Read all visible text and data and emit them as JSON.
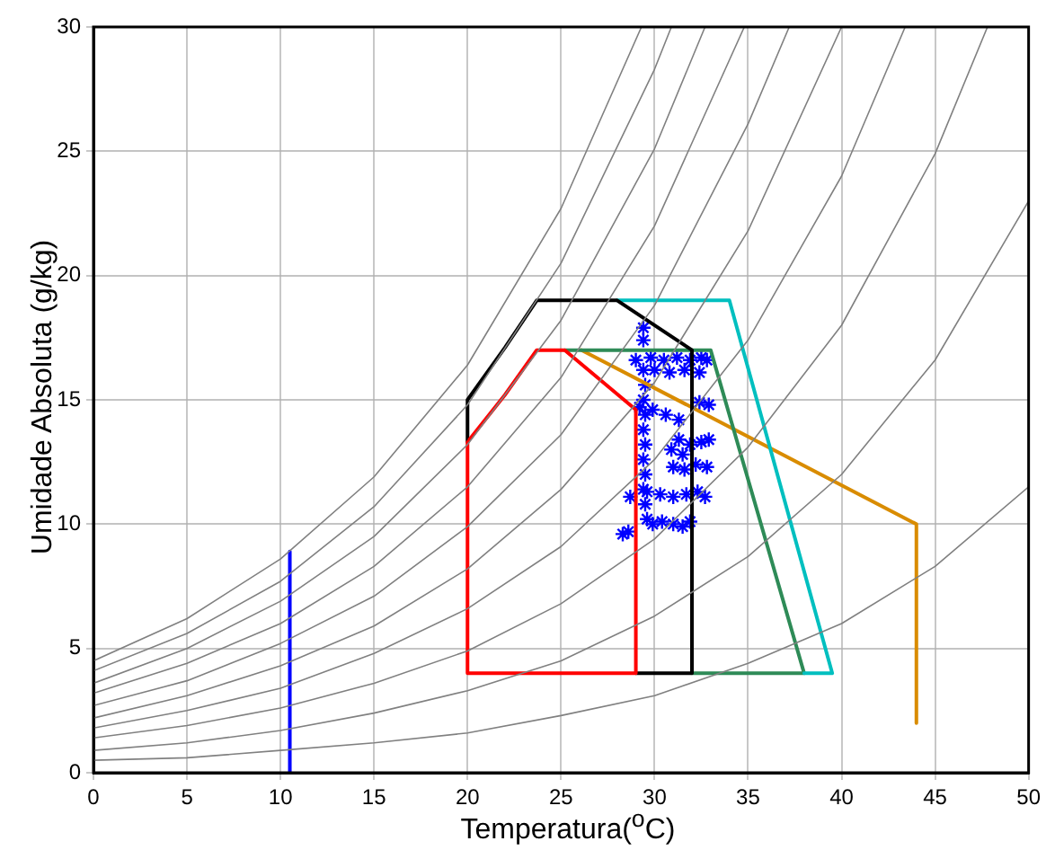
{
  "chart_data": {
    "type": "line",
    "xlabel": "Temperatura($^{o}$C)",
    "ylabel": "Umidade Absoluta (g/kg)",
    "xlim": [
      0,
      50
    ],
    "ylim": [
      0,
      30
    ],
    "xticks": [
      0,
      5,
      10,
      15,
      20,
      25,
      30,
      35,
      40,
      45,
      50
    ],
    "yticks": [
      0,
      5,
      10,
      15,
      20,
      25,
      30
    ],
    "grid": true,
    "legend": false,
    "line_style": "solid",
    "series": [
      {
        "type": "line",
        "color": "#808080",
        "x": [
          0,
          5,
          10,
          15,
          20,
          25,
          29.3
        ],
        "values": [
          4.5,
          6.2,
          8.6,
          11.9,
          16.4,
          22.7,
          30
        ]
      },
      {
        "type": "line",
        "color": "#808080",
        "x": [
          0,
          5,
          10,
          15,
          20,
          25,
          30,
          30.9
        ],
        "values": [
          4.1,
          5.6,
          7.7,
          10.7,
          14.8,
          20.5,
          28.3,
          30
        ]
      },
      {
        "type": "line",
        "color": "#808080",
        "x": [
          0,
          5,
          10,
          15,
          20,
          25,
          30,
          32.7
        ],
        "values": [
          3.6,
          5.0,
          6.9,
          9.5,
          13.2,
          18.2,
          25.1,
          30
        ]
      },
      {
        "type": "line",
        "color": "#808080",
        "x": [
          0,
          5,
          10,
          15,
          20,
          25,
          30,
          34.8
        ],
        "values": [
          3.2,
          4.4,
          6.0,
          8.3,
          11.5,
          15.9,
          22.0,
          30
        ]
      },
      {
        "type": "line",
        "color": "#808080",
        "x": [
          0,
          5,
          10,
          15,
          20,
          25,
          30,
          35,
          37.2
        ],
        "values": [
          2.7,
          3.7,
          5.2,
          7.1,
          9.9,
          13.6,
          18.8,
          26.1,
          30
        ]
      },
      {
        "type": "line",
        "color": "#808080",
        "x": [
          0,
          5,
          10,
          15,
          20,
          25,
          30,
          35,
          40
        ],
        "values": [
          2.2,
          3.1,
          4.3,
          5.9,
          8.2,
          11.4,
          15.7,
          21.8,
          30
        ]
      },
      {
        "type": "line",
        "color": "#808080",
        "x": [
          0,
          5,
          10,
          15,
          20,
          25,
          30,
          35,
          40,
          43.4
        ],
        "values": [
          1.8,
          2.5,
          3.4,
          4.8,
          6.6,
          9.1,
          12.6,
          17.4,
          24.0,
          30
        ]
      },
      {
        "type": "line",
        "color": "#808080",
        "x": [
          0,
          5,
          10,
          15,
          20,
          25,
          30,
          35,
          40,
          45,
          47.8
        ],
        "values": [
          1.4,
          1.9,
          2.6,
          3.6,
          4.9,
          6.8,
          9.4,
          13.1,
          18.0,
          24.9,
          30
        ]
      },
      {
        "type": "line",
        "color": "#808080",
        "x": [
          0,
          5,
          10,
          15,
          20,
          25,
          30,
          35,
          40,
          45,
          50
        ],
        "values": [
          0.9,
          1.2,
          1.7,
          2.4,
          3.3,
          4.5,
          6.3,
          8.7,
          12.0,
          16.6,
          23.0
        ]
      },
      {
        "type": "line",
        "color": "#808080",
        "x": [
          0,
          5,
          10,
          15,
          20,
          25,
          30,
          35,
          40,
          45,
          50
        ],
        "values": [
          0.5,
          0.6,
          0.9,
          1.2,
          1.6,
          2.3,
          3.1,
          4.4,
          6.0,
          8.3,
          11.5
        ]
      },
      {
        "type": "line",
        "color": "#0000ff",
        "x": [
          10.5,
          10.5
        ],
        "values": [
          0,
          8.9
        ]
      },
      {
        "type": "line",
        "color": "#ff0000",
        "x": [
          20,
          20,
          29,
          29,
          25.2,
          23.7,
          22,
          20.1
        ],
        "values": [
          13.3,
          4,
          4,
          14.6,
          17,
          17,
          15.2,
          13.4
        ]
      },
      {
        "type": "line",
        "color": "#000000",
        "x": [
          29,
          32,
          32,
          28,
          23.7,
          22,
          20,
          20
        ],
        "values": [
          4,
          4,
          17,
          19,
          19,
          17.1,
          15,
          13.3
        ]
      },
      {
        "type": "line",
        "color": "#00bfbf",
        "x": [
          28,
          34,
          39.5,
          38
        ],
        "values": [
          19,
          19,
          4,
          4
        ]
      },
      {
        "type": "line",
        "color": "#2e8b57",
        "x": [
          25.2,
          33,
          38,
          32
        ],
        "values": [
          17,
          17,
          4,
          4
        ]
      },
      {
        "type": "line",
        "color": "#d98c00",
        "x": [
          26.1,
          44,
          44
        ],
        "values": [
          17,
          10,
          2
        ]
      },
      {
        "type": "scatter",
        "color": "#0000ff",
        "marker": "cross",
        "x": [
          29.4,
          29.4,
          29.4,
          29.5,
          29.4,
          29.5,
          29.4,
          29.5,
          29.4,
          29.5,
          29.4,
          29.5,
          29.6,
          29.0,
          29.8,
          30.5,
          31.2,
          31.9,
          32.5,
          32.8,
          30.0,
          30.8,
          31.6,
          32.4,
          29.2,
          29.9,
          30.6,
          31.3,
          32.4,
          32.9,
          31.3,
          31.9,
          32.5,
          32.9,
          31.0,
          31.6,
          32.2,
          32.8,
          28.7,
          29.6,
          30.3,
          31.0,
          31.7,
          32.3,
          32.7,
          28.3,
          28.6,
          29.9,
          30.4,
          31.0,
          31.5,
          31.9,
          30.9,
          31.5
        ],
        "values": [
          17.9,
          17.4,
          16.2,
          15.6,
          15.0,
          14.4,
          13.8,
          13.2,
          12.6,
          12.0,
          11.4,
          10.8,
          10.2,
          16.6,
          16.7,
          16.6,
          16.7,
          16.6,
          16.7,
          16.6,
          16.2,
          16.1,
          16.2,
          16.1,
          14.7,
          14.6,
          14.4,
          14.2,
          14.9,
          14.8,
          13.4,
          13.2,
          13.3,
          13.4,
          12.3,
          12.2,
          12.4,
          12.3,
          11.1,
          11.3,
          11.2,
          11.1,
          11.2,
          11.3,
          11.1,
          9.6,
          9.7,
          10.0,
          10.1,
          10.0,
          9.9,
          10.1,
          13.0,
          12.8
        ]
      }
    ]
  }
}
